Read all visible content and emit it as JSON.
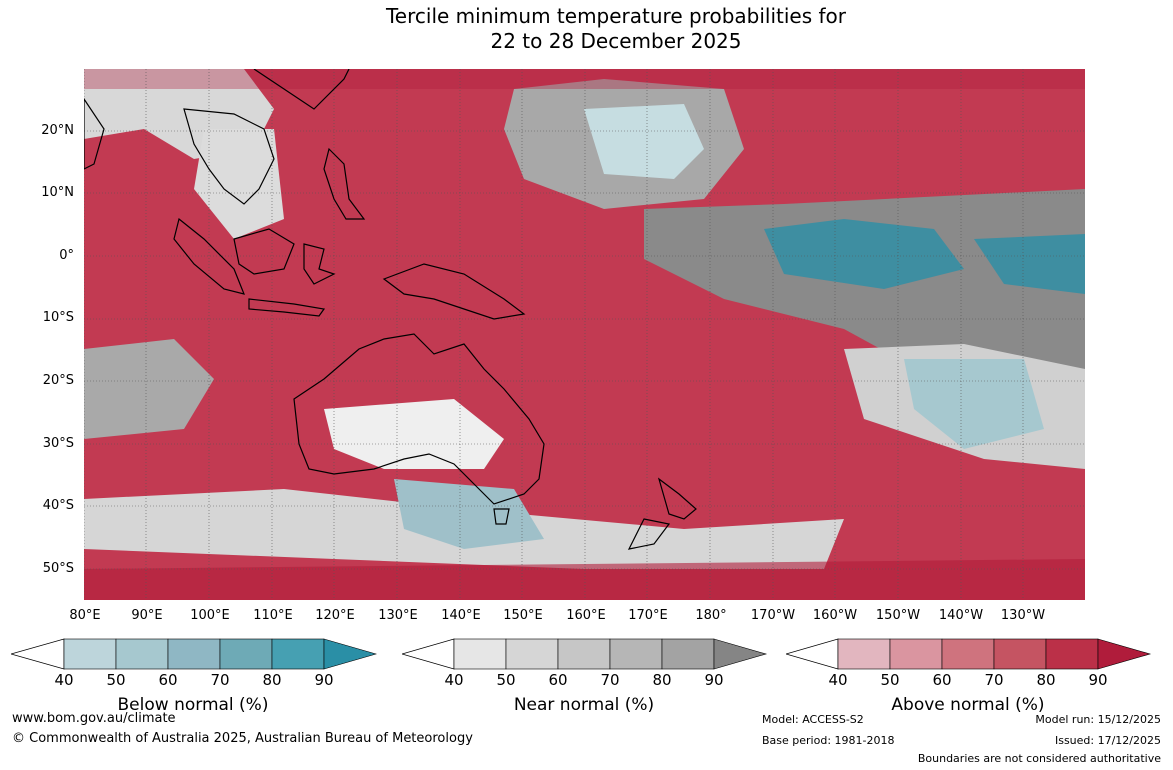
{
  "title_line1": "Tercile minimum temperature probabilities for",
  "title_line2": "22 to 28 December 2025",
  "lat_labels": [
    "20°N",
    "10°N",
    "0°",
    "10°S",
    "20°S",
    "30°S",
    "40°S",
    "50°S"
  ],
  "lon_labels": [
    "80°E",
    "90°E",
    "100°E",
    "110°E",
    "120°E",
    "130°E",
    "140°E",
    "150°E",
    "160°E",
    "170°E",
    "180°",
    "170°W",
    "160°W",
    "150°W",
    "140°W",
    "130°W"
  ],
  "colorbars": {
    "below": {
      "label": "Below normal (%)",
      "ticks": [
        "40",
        "50",
        "60",
        "70",
        "80",
        "90"
      ],
      "colors": [
        "#bdd5db",
        "#a6c8cf",
        "#8fb7c4",
        "#6eaab6",
        "#46a0b2",
        "#2a8fa6"
      ]
    },
    "near": {
      "label": "Near normal (%)",
      "ticks": [
        "40",
        "50",
        "60",
        "70",
        "80",
        "90"
      ],
      "colors": [
        "#e6e6e6",
        "#d6d6d6",
        "#c6c6c6",
        "#b6b6b6",
        "#a3a3a3",
        "#858585"
      ]
    },
    "above": {
      "label": "Above normal (%)",
      "ticks": [
        "40",
        "50",
        "60",
        "70",
        "80",
        "90"
      ],
      "colors": [
        "#e2b6bf",
        "#da95a0",
        "#cf737e",
        "#c55462",
        "#bb3048",
        "#b01c3b"
      ]
    }
  },
  "footer": {
    "website": "www.bom.gov.au/climate",
    "copyright": "© Commonwealth of Australia 2025, Australian Bureau of Meteorology",
    "model": "Model: ACCESS-S2",
    "base_period": "Base period: 1981-2018",
    "model_run": "Model run: 15/12/2025",
    "issued": "Issued: 17/12/2025",
    "disclaimer": "Boundaries are not considered authoritative"
  }
}
